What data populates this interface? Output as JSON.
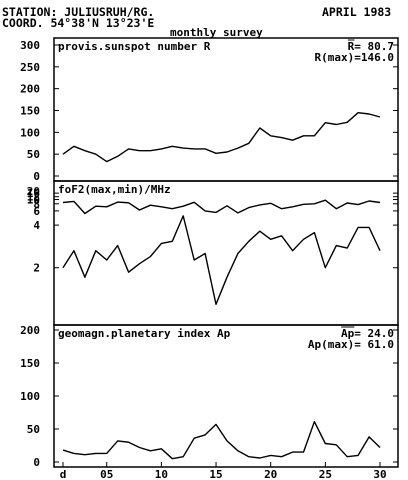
{
  "header": {
    "station": "STATION: JULIUSRUH/RG.",
    "coord": "COORD. 54°38'N 13°23'E",
    "date": "APRIL 1983",
    "survey": "monthly survey"
  },
  "x_axis": {
    "range": [
      1,
      30
    ],
    "ticks": [
      {
        "value": 1,
        "label": "d"
      },
      {
        "value": 5,
        "label": "05"
      },
      {
        "value": 10,
        "label": "10"
      },
      {
        "value": 15,
        "label": "15"
      },
      {
        "value": 20,
        "label": "20"
      },
      {
        "value": 25,
        "label": "25"
      },
      {
        "value": 30,
        "label": "30"
      }
    ]
  },
  "chart_data": [
    {
      "type": "line",
      "title": "provis.sunspot number R",
      "annotations": [
        "R= 80.7",
        "R(max)=146.0"
      ],
      "ylim": [
        0,
        300
      ],
      "yscale": "linear",
      "yticks": [
        0,
        50,
        100,
        150,
        200,
        250,
        300
      ],
      "x": [
        1,
        2,
        3,
        4,
        5,
        6,
        7,
        8,
        9,
        10,
        11,
        12,
        13,
        14,
        15,
        16,
        17,
        18,
        19,
        20,
        21,
        22,
        23,
        24,
        25,
        26,
        27,
        28,
        29,
        30
      ],
      "series": [
        {
          "values": [
            50,
            68,
            58,
            50,
            33,
            45,
            62,
            58,
            58,
            62,
            68,
            64,
            62,
            62,
            52,
            55,
            64,
            75,
            110,
            92,
            88,
            82,
            92,
            92,
            122,
            118,
            123,
            145,
            142,
            135
          ]
        }
      ]
    },
    {
      "type": "line",
      "title": "foF2(max,min)/MHz",
      "ylim": [
        0,
        20
      ],
      "yscale": "log",
      "yticks": [
        2,
        4,
        6,
        8,
        10,
        12,
        16,
        20
      ],
      "x": [
        1,
        2,
        3,
        4,
        5,
        6,
        7,
        8,
        9,
        10,
        11,
        12,
        13,
        14,
        15,
        16,
        17,
        18,
        19,
        20,
        21,
        22,
        23,
        24,
        25,
        26,
        27,
        28,
        29,
        30
      ],
      "series": [
        {
          "values": [
            8.5,
            9,
            5.5,
            7.2,
            7,
            8.7,
            8.4,
            6.2,
            7.5,
            7,
            6.5,
            7.2,
            8.6,
            6,
            5.7,
            7.3,
            5.6,
            6.8,
            7.6,
            8.2,
            6.5,
            7,
            7.8,
            8,
            9.6,
            6.5,
            8.3,
            7.7,
            9.2,
            8.5
          ]
        },
        {
          "values": [
            2,
            2.5,
            1.8,
            2.5,
            2.2,
            2.7,
            1.9,
            2.1,
            2.3,
            2.8,
            2.9,
            5.1,
            2.2,
            2.4,
            1.4,
            1.8,
            2.4,
            2.9,
            3.5,
            3,
            3.2,
            2.5,
            3,
            3.4,
            2,
            2.7,
            2.6,
            3.8,
            3.8,
            2.5
          ]
        }
      ]
    },
    {
      "type": "line",
      "title": "geomagn.planetary index Ap",
      "annotations": [
        "Ap= 24.0",
        "Ap(max)= 61.0"
      ],
      "ylim": [
        0,
        200
      ],
      "yscale": "linear",
      "yticks": [
        0,
        50,
        100,
        150,
        200
      ],
      "x": [
        1,
        2,
        3,
        4,
        5,
        6,
        7,
        8,
        9,
        10,
        11,
        12,
        13,
        14,
        15,
        16,
        17,
        18,
        19,
        20,
        21,
        22,
        23,
        24,
        25,
        26,
        27,
        28,
        29,
        30
      ],
      "series": [
        {
          "values": [
            18,
            13,
            11,
            13,
            13,
            32,
            30,
            22,
            17,
            20,
            5,
            8,
            36,
            41,
            57,
            32,
            17,
            8,
            6,
            10,
            8,
            15,
            15,
            61,
            28,
            26,
            8,
            10,
            38,
            22
          ]
        }
      ]
    }
  ]
}
